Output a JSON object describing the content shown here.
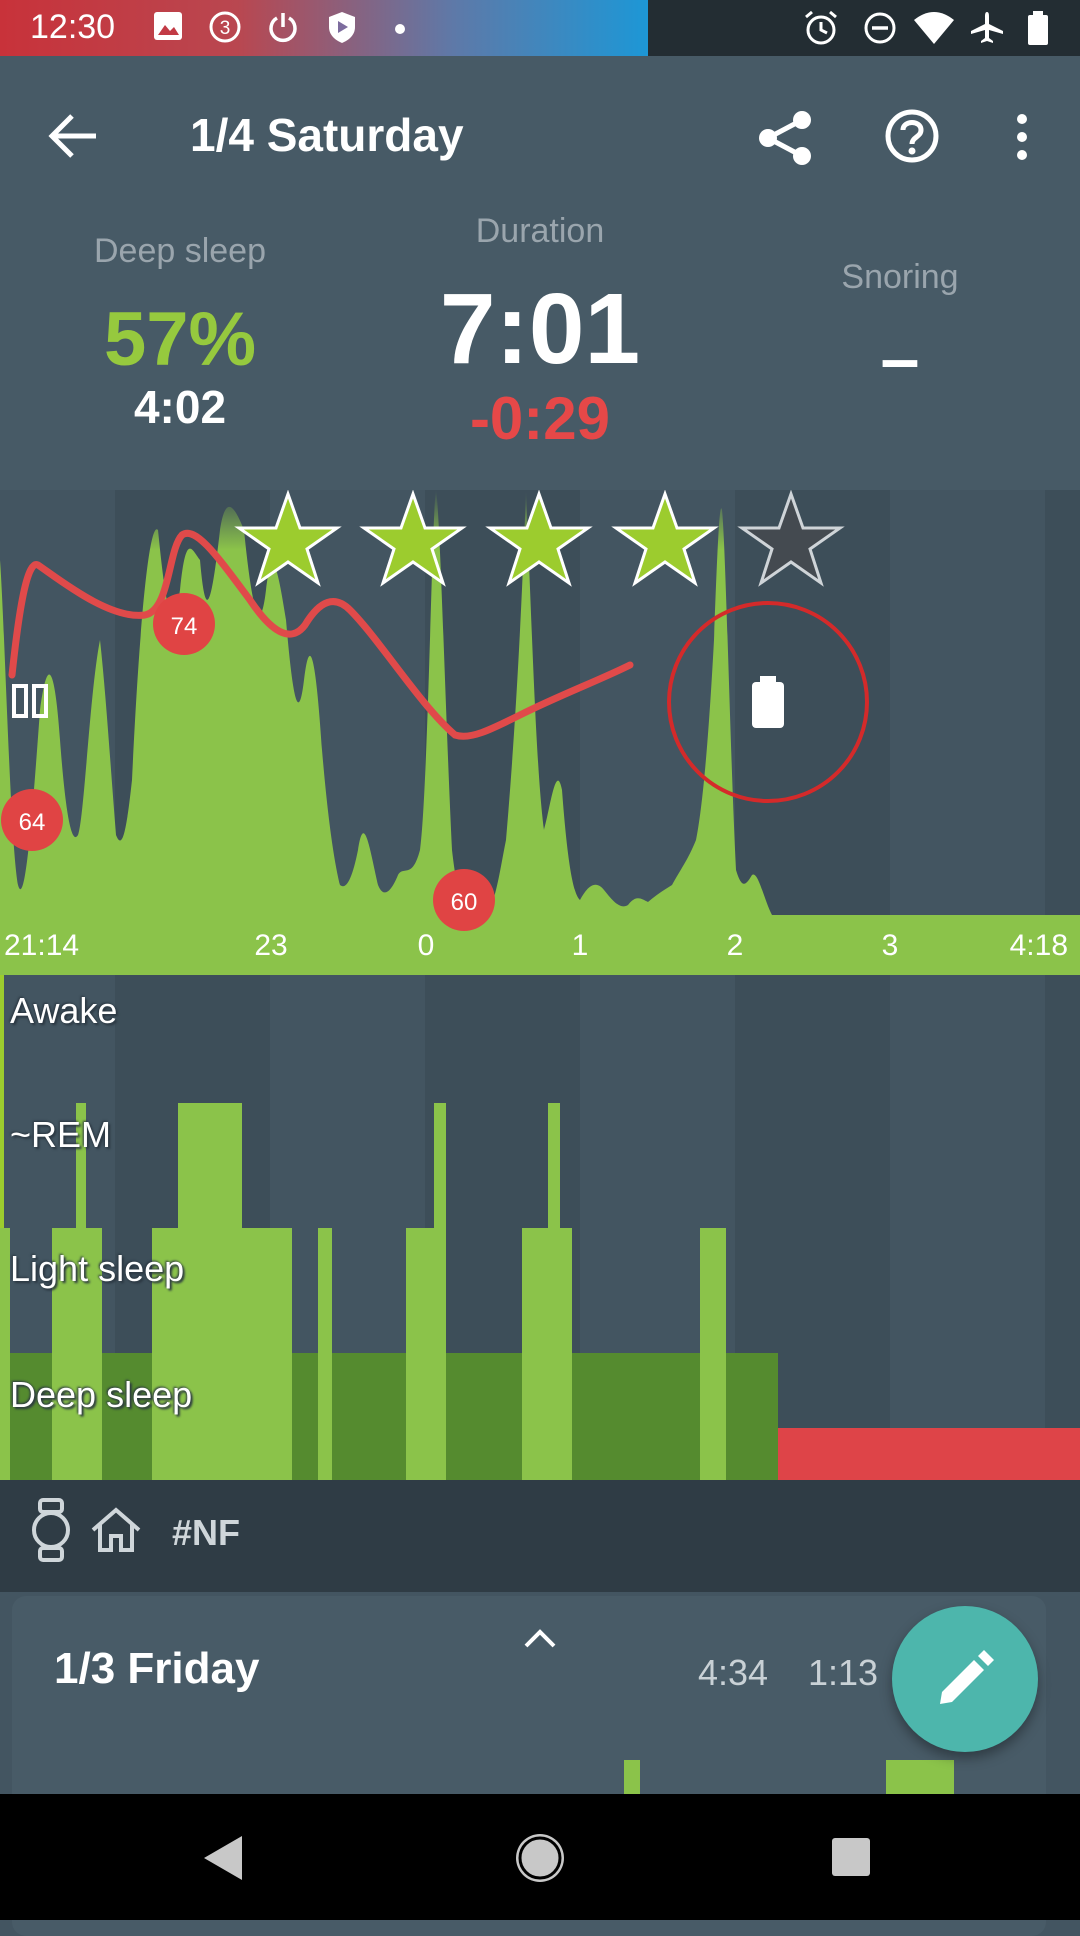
{
  "status_bar": {
    "time": "12:30",
    "icons": [
      "image-icon",
      "notification-count-icon",
      "power-icon",
      "shield-icon",
      "dot-icon",
      "alarm-icon",
      "do-not-disturb-icon",
      "wifi-icon",
      "airplane-icon",
      "battery-icon"
    ],
    "notification_count": "3"
  },
  "app_bar": {
    "title": "1/4 Saturday",
    "icons": [
      "back-arrow-icon",
      "share-icon",
      "help-icon",
      "more-vert-icon"
    ]
  },
  "summary": {
    "deep_sleep_label": "Deep sleep",
    "deep_sleep_percent": "57%",
    "deep_sleep_time": "4:02",
    "duration_label": "Duration",
    "duration_value": "7:01",
    "duration_diff": "-0:29",
    "snoring_label": "Snoring",
    "snoring_value": "–"
  },
  "rating": {
    "stars": 4,
    "max": 5
  },
  "chart": {
    "x_labels": [
      "21:14",
      "23",
      "0",
      "1",
      "2",
      "3",
      "4:18"
    ],
    "heart_rate_labels": [
      "64",
      "74",
      "60"
    ],
    "colors": {
      "activity": "#8bc34a",
      "hr_line": "#e04a4a",
      "deep": "#558b2f",
      "awake_gap": "#e04444"
    }
  },
  "hypnogram": {
    "stages": [
      "Awake",
      "~REM",
      "Light sleep",
      "Deep sleep"
    ]
  },
  "tags": {
    "icons": [
      "watch-icon",
      "home-icon"
    ],
    "text": "#NF"
  },
  "next_card": {
    "title": "1/3 Friday",
    "duration1": "4:34",
    "duration2": "1:13"
  },
  "nav": {
    "icons": [
      "nav-back-icon",
      "nav-home-icon",
      "nav-recents-icon"
    ]
  },
  "accent": "#96c93e"
}
